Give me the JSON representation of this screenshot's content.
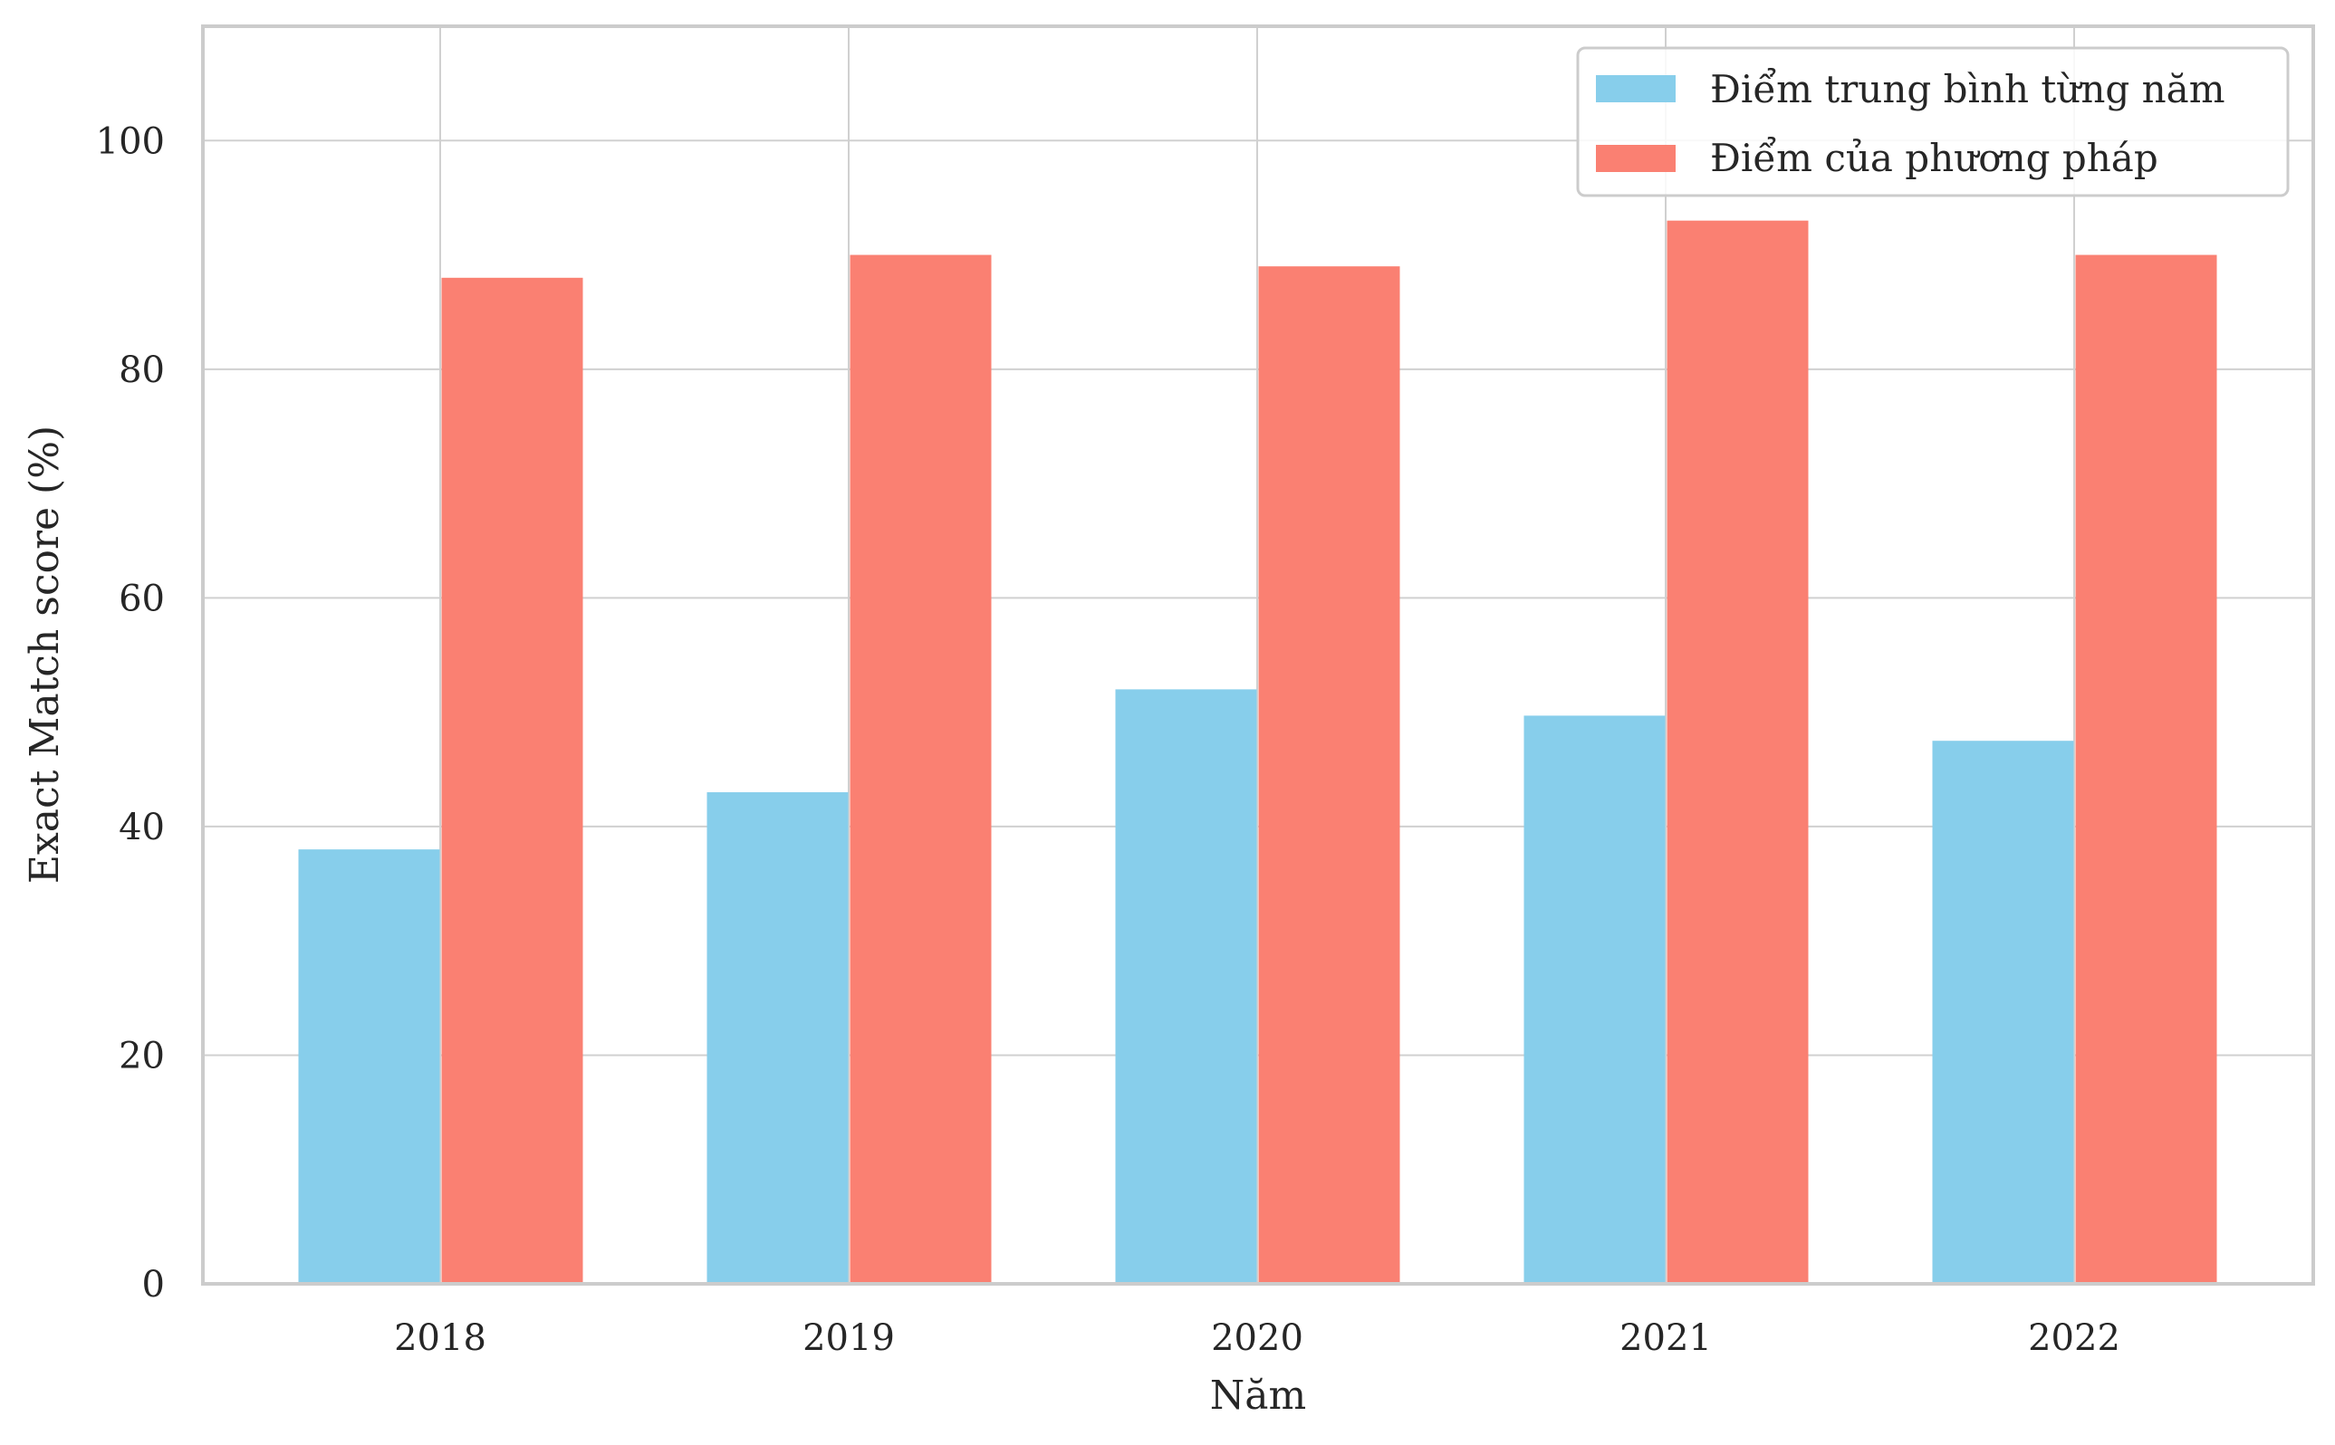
{
  "chart_data": {
    "type": "bar",
    "title": "",
    "xlabel": "Năm",
    "ylabel": "Exact Match score (%)",
    "categories": [
      "2018",
      "2019",
      "2020",
      "2021",
      "2022"
    ],
    "series": [
      {
        "name": "Điểm trung bình từng năm",
        "color": "#87CEEB",
        "values": [
          38,
          43,
          52,
          49.7,
          47.5
        ]
      },
      {
        "name": "Điểm của phương pháp",
        "color": "#FA8072",
        "values": [
          88,
          90,
          89,
          93,
          90
        ]
      }
    ],
    "ylim": [
      0,
      110
    ],
    "yticks": [
      0,
      20,
      40,
      60,
      80,
      100
    ],
    "grid": true,
    "legend_position": "top-right"
  }
}
